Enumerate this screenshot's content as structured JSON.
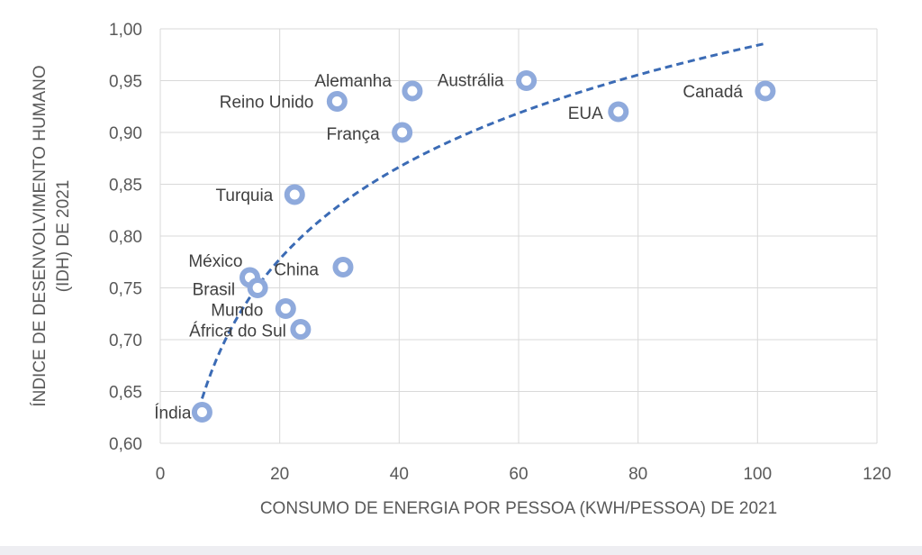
{
  "chart_data": {
    "type": "scatter",
    "xlabel": "CONSUMO DE ENERGIA POR PESSOA (KWH/PESSOA) DE 2021",
    "ylabel_lines": [
      "ÍNDICE DE DESENVOLVIMENTO HUMANO",
      "(IDH) DE 2021"
    ],
    "xlim": [
      0,
      120
    ],
    "ylim": [
      0.6,
      1.0
    ],
    "x_ticks": [
      0,
      20,
      40,
      60,
      80,
      100,
      120
    ],
    "y_ticks": [
      0.6,
      0.65,
      0.7,
      0.75,
      0.8,
      0.85,
      0.9,
      0.95,
      1.0
    ],
    "x_tick_labels": [
      "0",
      "20",
      "40",
      "60",
      "80",
      "100",
      "120"
    ],
    "y_tick_labels": [
      "0,60",
      "0,65",
      "0,70",
      "0,75",
      "0,80",
      "0,85",
      "0,90",
      "0,95",
      "1,00"
    ],
    "grid": true,
    "colors": {
      "marker": "#8faadc",
      "trendline": "#3b6bb5",
      "grid": "#d9d9d9"
    },
    "trendline": {
      "type": "logarithmic",
      "style": "dashed",
      "x_range": [
        7,
        101.5
      ]
    },
    "points": [
      {
        "label": "Índia",
        "x": 7,
        "y": 0.63
      },
      {
        "label": "México",
        "x": 15,
        "y": 0.76
      },
      {
        "label": "Brasil",
        "x": 16.3,
        "y": 0.75
      },
      {
        "label": "Mundo",
        "x": 21,
        "y": 0.73
      },
      {
        "label": "Turquia",
        "x": 22.5,
        "y": 0.84
      },
      {
        "label": "África do Sul",
        "x": 23.5,
        "y": 0.71
      },
      {
        "label": "Reino Unido",
        "x": 29.6,
        "y": 0.93
      },
      {
        "label": "China",
        "x": 30.6,
        "y": 0.77
      },
      {
        "label": "França",
        "x": 40.5,
        "y": 0.9
      },
      {
        "label": "Alemanha",
        "x": 42.2,
        "y": 0.94
      },
      {
        "label": "Austrália",
        "x": 61.3,
        "y": 0.95
      },
      {
        "label": "EUA",
        "x": 76.7,
        "y": 0.92
      },
      {
        "label": "Canadá",
        "x": 101.3,
        "y": 0.94
      }
    ]
  }
}
